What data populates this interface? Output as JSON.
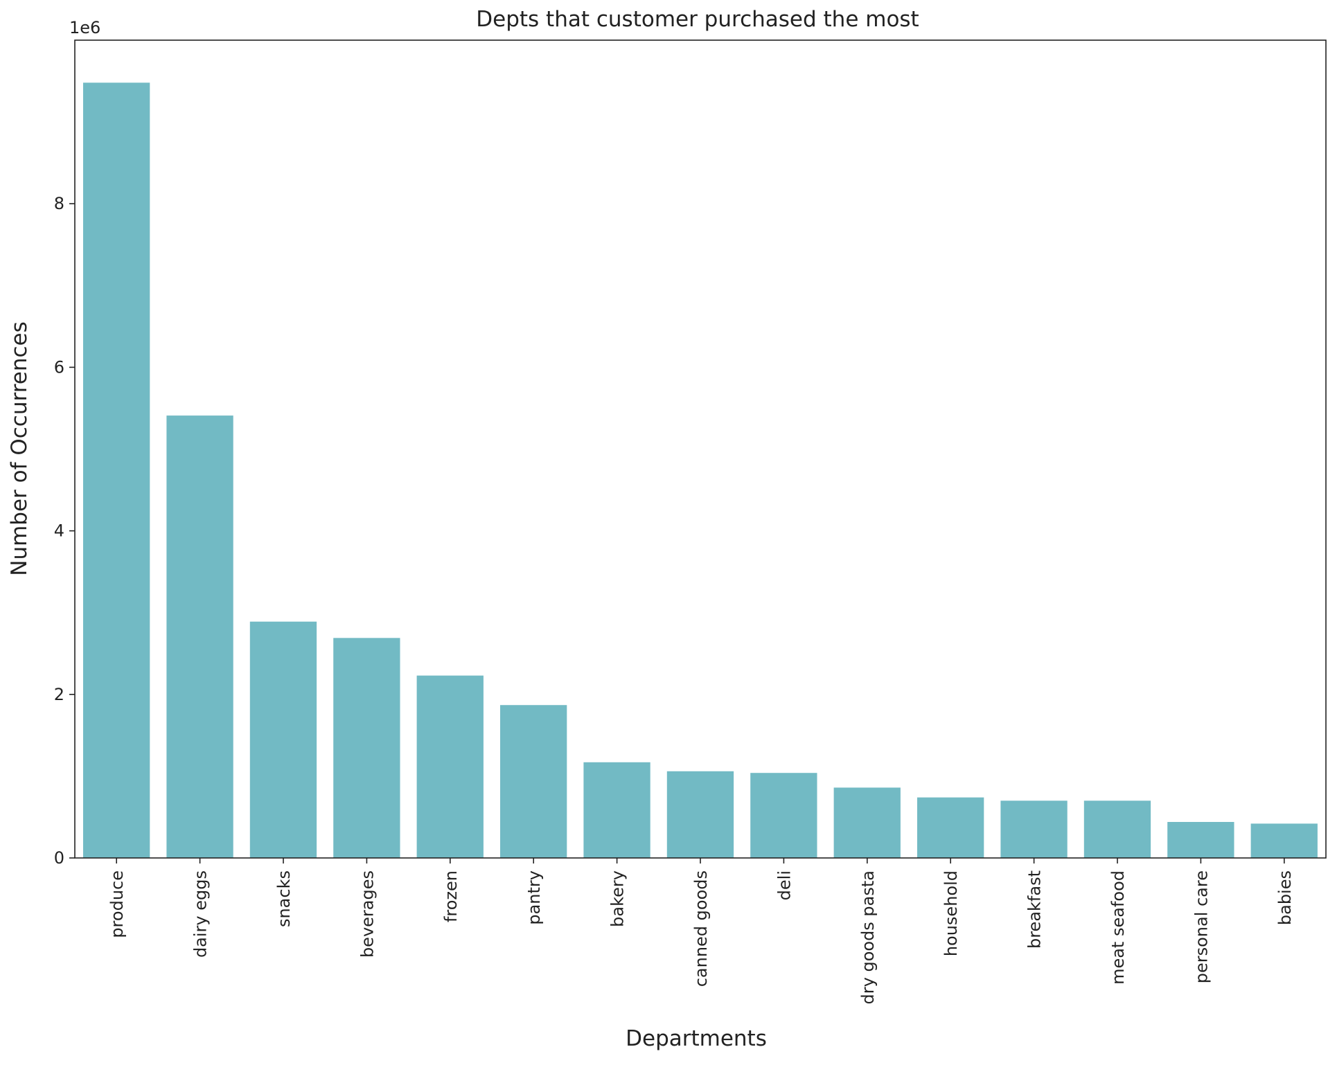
{
  "chart_data": {
    "type": "bar",
    "title": "Depts that customer purchased the most",
    "xlabel": "Departments",
    "ylabel": "Number of Occurrences",
    "y_offset_label": "1e6",
    "y_scale": 1000000,
    "ylim": [
      0,
      10000000
    ],
    "yticks": [
      0,
      2000000,
      4000000,
      6000000,
      8000000
    ],
    "ytick_labels": [
      "0",
      "2",
      "4",
      "6",
      "8"
    ],
    "categories": [
      "produce",
      "dairy eggs",
      "snacks",
      "beverages",
      "frozen",
      "pantry",
      "bakery",
      "canned goods",
      "deli",
      "dry goods pasta",
      "household",
      "breakfast",
      "meat seafood",
      "personal care",
      "babies"
    ],
    "values": [
      9480000,
      5410000,
      2890000,
      2690000,
      2230000,
      1870000,
      1170000,
      1060000,
      1040000,
      860000,
      740000,
      700000,
      700000,
      440000,
      420000
    ],
    "bar_color": "#72bac4",
    "grid": false,
    "legend": "none"
  }
}
